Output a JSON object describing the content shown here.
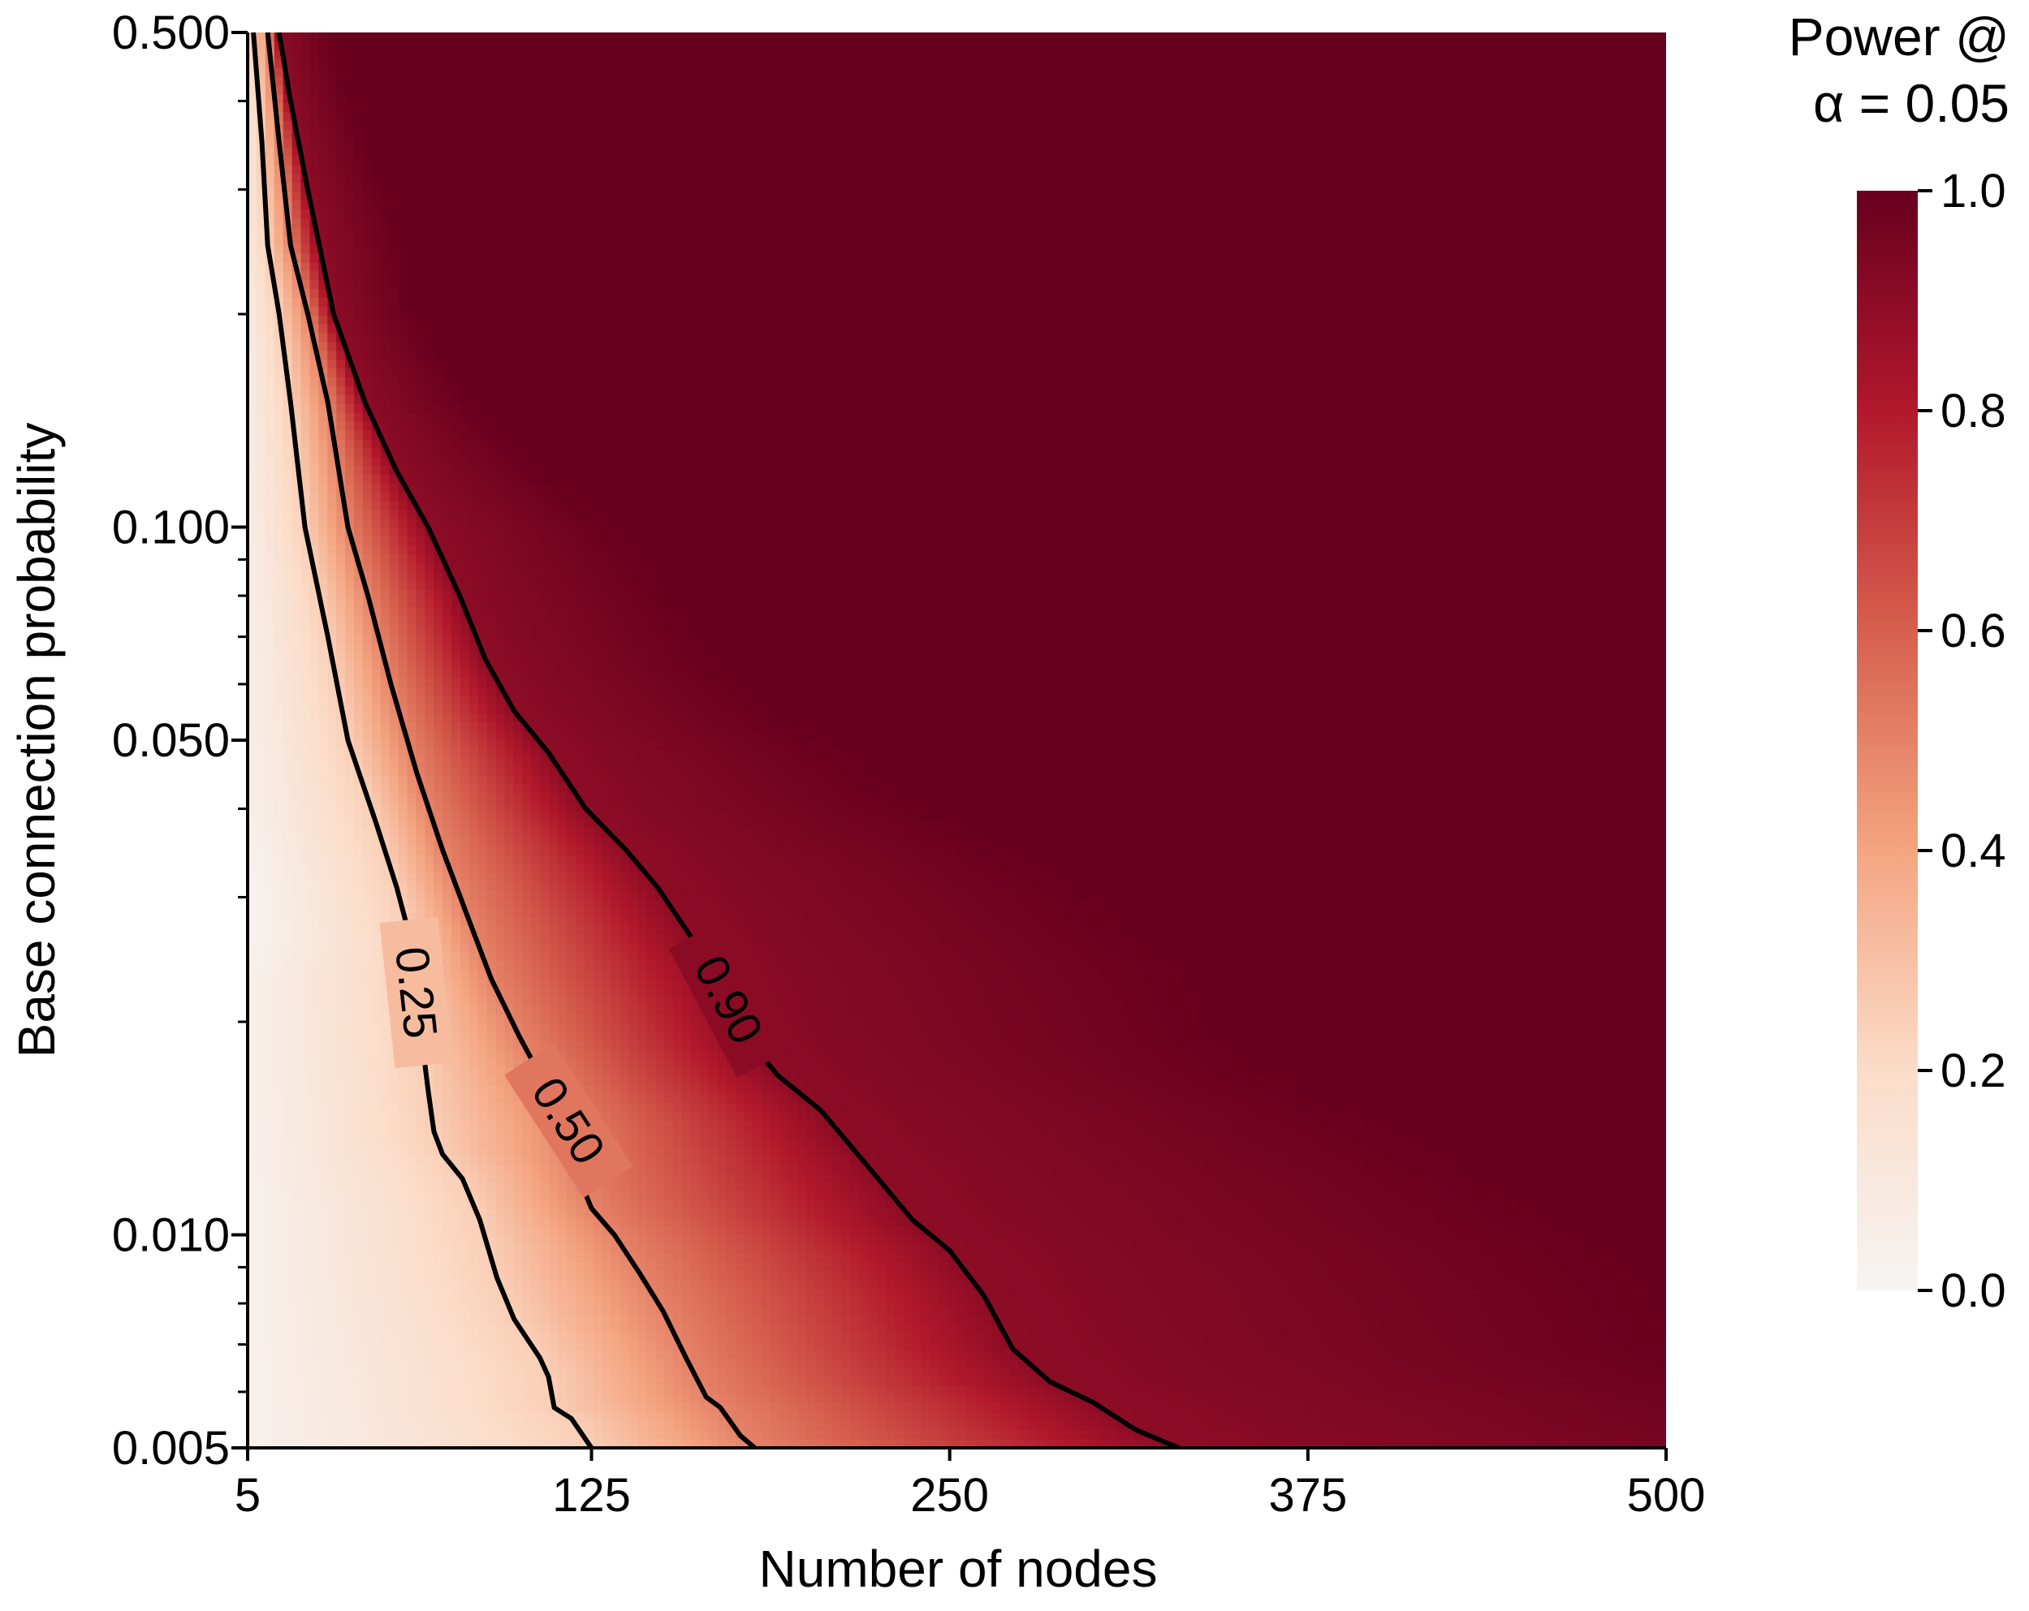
{
  "chart_data": {
    "type": "heatmap",
    "xlabel": "Number of nodes",
    "ylabel": "Base connection probability",
    "x_ticks": [
      "5",
      "125",
      "250",
      "375",
      "500"
    ],
    "y_ticks": [
      "0.005",
      "0.010",
      "0.050",
      "0.100",
      "0.500"
    ],
    "xlim": [
      5,
      500
    ],
    "ylim": [
      0.005,
      0.5
    ],
    "y_scale": "log",
    "colorbar": {
      "title_line1": "Power @",
      "title_line2": "α = 0.05",
      "ticks": [
        "0.0",
        "0.2",
        "0.4",
        "0.6",
        "0.8",
        "1.0"
      ],
      "range": [
        0,
        1
      ],
      "colormap": "Reds",
      "colors": [
        "#f6f4f3",
        "#fbdcc8",
        "#f4a582",
        "#d6604d",
        "#b2182b",
        "#67001f"
      ]
    },
    "contours": [
      {
        "level": 0.25,
        "label": "0.25",
        "points": [
          [
            7,
            0.5
          ],
          [
            10,
            0.35
          ],
          [
            12,
            0.25
          ],
          [
            16,
            0.2
          ],
          [
            20,
            0.15
          ],
          [
            25,
            0.1
          ],
          [
            33,
            0.07
          ],
          [
            40,
            0.05
          ],
          [
            50,
            0.038
          ],
          [
            57,
            0.031
          ],
          [
            62,
            0.026
          ],
          [
            65,
            0.02
          ],
          [
            68,
            0.016
          ],
          [
            70,
            0.014
          ],
          [
            73,
            0.013
          ],
          [
            80,
            0.012
          ],
          [
            86,
            0.0105
          ],
          [
            92,
            0.0087
          ],
          [
            98,
            0.0076
          ],
          [
            107,
            0.0067
          ],
          [
            110,
            0.0063
          ],
          [
            112,
            0.0057
          ],
          [
            118,
            0.0055
          ],
          [
            125,
            0.005
          ]
        ]
      },
      {
        "level": 0.5,
        "label": "0.50",
        "points": [
          [
            12,
            0.5
          ],
          [
            16,
            0.35
          ],
          [
            20,
            0.25
          ],
          [
            26,
            0.2
          ],
          [
            33,
            0.15
          ],
          [
            40,
            0.1
          ],
          [
            47,
            0.08
          ],
          [
            55,
            0.06
          ],
          [
            64,
            0.045
          ],
          [
            73,
            0.035
          ],
          [
            82,
            0.028
          ],
          [
            90,
            0.023
          ],
          [
            100,
            0.019
          ],
          [
            110,
            0.016
          ],
          [
            117,
            0.0145
          ],
          [
            120,
            0.0122
          ],
          [
            125,
            0.0109
          ],
          [
            133,
            0.01
          ],
          [
            142,
            0.0088
          ],
          [
            150,
            0.0078
          ],
          [
            158,
            0.0067
          ],
          [
            165,
            0.0059
          ],
          [
            170,
            0.0057
          ],
          [
            177,
            0.0052
          ],
          [
            182,
            0.005
          ]
        ]
      },
      {
        "level": 0.9,
        "label": "0.90",
        "points": [
          [
            16,
            0.5
          ],
          [
            20,
            0.4
          ],
          [
            26,
            0.3
          ],
          [
            35,
            0.2
          ],
          [
            46,
            0.15
          ],
          [
            57,
            0.12
          ],
          [
            68,
            0.1
          ],
          [
            79,
            0.08
          ],
          [
            88,
            0.065
          ],
          [
            98,
            0.055
          ],
          [
            110,
            0.048
          ],
          [
            123,
            0.04
          ],
          [
            137,
            0.035
          ],
          [
            148,
            0.031
          ],
          [
            158,
            0.027
          ],
          [
            168,
            0.0236
          ],
          [
            180,
            0.0188
          ],
          [
            190,
            0.0168
          ],
          [
            205,
            0.015
          ],
          [
            220,
            0.0127
          ],
          [
            237,
            0.0105
          ],
          [
            250,
            0.0095
          ],
          [
            262,
            0.0082
          ],
          [
            272,
            0.0069
          ],
          [
            285,
            0.0062
          ],
          [
            300,
            0.0058
          ],
          [
            315,
            0.0053
          ],
          [
            330,
            0.005
          ]
        ]
      }
    ]
  }
}
